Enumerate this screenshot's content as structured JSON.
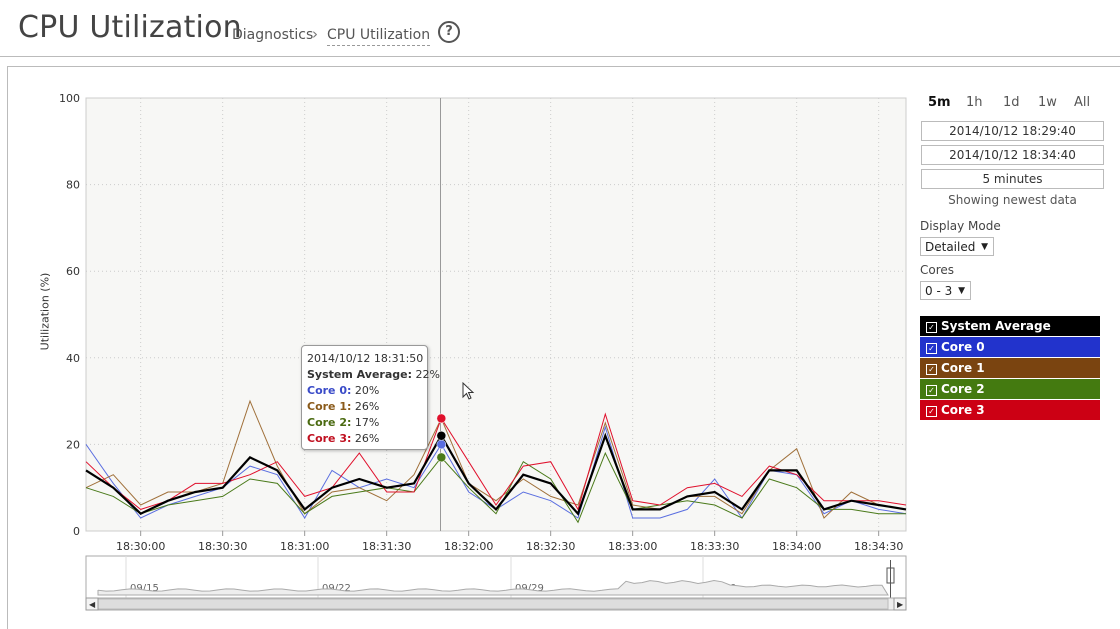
{
  "header": {
    "title": "CPU Utilization",
    "breadcrumb_parent": "Diagnostics",
    "breadcrumb_separator": "›",
    "breadcrumb_current": "CPU Utilization",
    "help_icon": "?"
  },
  "chart_data": {
    "type": "line",
    "ylabel": "Utilization (%)",
    "ylim": [
      0,
      100
    ],
    "yticks": [
      "0",
      "20",
      "40",
      "60",
      "80",
      "100"
    ],
    "xticks": [
      "18:30:00",
      "18:30:30",
      "18:31:00",
      "18:31:30",
      "18:32:00",
      "18:32:30",
      "18:33:00",
      "18:33:30",
      "18:34:00",
      "18:34:30"
    ],
    "x_range": [
      "18:29:40",
      "18:34:40"
    ],
    "grid": true,
    "x": [
      "18:29:40",
      "18:29:50",
      "18:30:00",
      "18:30:10",
      "18:30:20",
      "18:30:30",
      "18:30:40",
      "18:30:50",
      "18:31:00",
      "18:31:10",
      "18:31:20",
      "18:31:30",
      "18:31:40",
      "18:31:50",
      "18:32:00",
      "18:32:10",
      "18:32:20",
      "18:32:30",
      "18:32:40",
      "18:32:50",
      "18:33:00",
      "18:33:10",
      "18:33:20",
      "18:33:30",
      "18:33:40",
      "18:33:50",
      "18:34:00",
      "18:34:10",
      "18:34:20",
      "18:34:30",
      "18:34:40"
    ],
    "series": [
      {
        "name": "Core 0",
        "color": "#5a6ee0",
        "values": [
          20,
          11,
          3,
          6,
          8,
          10,
          15,
          13,
          3,
          14,
          10,
          12,
          10,
          20,
          9,
          5,
          9,
          7,
          3,
          24,
          3,
          3,
          5,
          12,
          3,
          14,
          13,
          4,
          7,
          5,
          4
        ]
      },
      {
        "name": "Core 1",
        "color": "#a0703a",
        "values": [
          10,
          13,
          6,
          9,
          9,
          11,
          30,
          15,
          4,
          9,
          10,
          7,
          13,
          26,
          11,
          7,
          12,
          8,
          6,
          25,
          6,
          5,
          8,
          8,
          4,
          14,
          19,
          3,
          9,
          6,
          5
        ]
      },
      {
        "name": "Core 2",
        "color": "#4a7a1a",
        "values": [
          10,
          8,
          4,
          6,
          7,
          8,
          12,
          11,
          4,
          8,
          9,
          10,
          9,
          17,
          10,
          4,
          16,
          12,
          2,
          18,
          5,
          6,
          7,
          6,
          3,
          12,
          10,
          5,
          5,
          4,
          4
        ]
      },
      {
        "name": "Core 3",
        "color": "#e0102c",
        "values": [
          16,
          10,
          5,
          7,
          11,
          11,
          13,
          16,
          8,
          10,
          18,
          9,
          9,
          26,
          16,
          6,
          15,
          16,
          5,
          27,
          7,
          6,
          10,
          11,
          8,
          15,
          13,
          7,
          7,
          7,
          6
        ]
      },
      {
        "name": "System Average",
        "color": "#000000",
        "values": [
          14,
          10,
          4,
          7,
          9,
          10,
          17,
          14,
          5,
          10,
          12,
          10,
          11,
          22,
          11,
          5,
          13,
          11,
          4,
          22,
          5,
          5,
          8,
          9,
          5,
          14,
          14,
          5,
          7,
          6,
          5
        ]
      }
    ],
    "navigator": {
      "labels": [
        "09/15",
        "09/22",
        "09/29",
        "10/06"
      ]
    }
  },
  "tooltip": {
    "time": "2014/10/12 18:31:50",
    "rows": [
      {
        "label": "System Average:",
        "value": "22%",
        "color": "#000000"
      },
      {
        "label": "Core 0:",
        "value": "20%",
        "color": "#3a4bc8"
      },
      {
        "label": "Core 1:",
        "value": "26%",
        "color": "#8a5a1a"
      },
      {
        "label": "Core 2:",
        "value": "17%",
        "color": "#4a6a10"
      },
      {
        "label": "Core 3:",
        "value": "26%",
        "color": "#c01020"
      }
    ]
  },
  "controls": {
    "ranges": [
      "5m",
      "1h",
      "1d",
      "1w",
      "All"
    ],
    "active_range": "5m",
    "start": "2014/10/12 18:29:40",
    "end": "2014/10/12 18:34:40",
    "duration": "5 minutes",
    "status": "Showing newest data",
    "display_mode_label": "Display Mode",
    "display_mode_value": "Detailed",
    "cores_label": "Cores",
    "cores_value": "0 - 3"
  },
  "legend": [
    {
      "label": "System Average",
      "color": "#000000"
    },
    {
      "label": "Core 0",
      "color": "#2233cc"
    },
    {
      "label": "Core 1",
      "color": "#7a4410"
    },
    {
      "label": "Core 2",
      "color": "#447a10"
    },
    {
      "label": "Core 3",
      "color": "#cc0014"
    }
  ]
}
